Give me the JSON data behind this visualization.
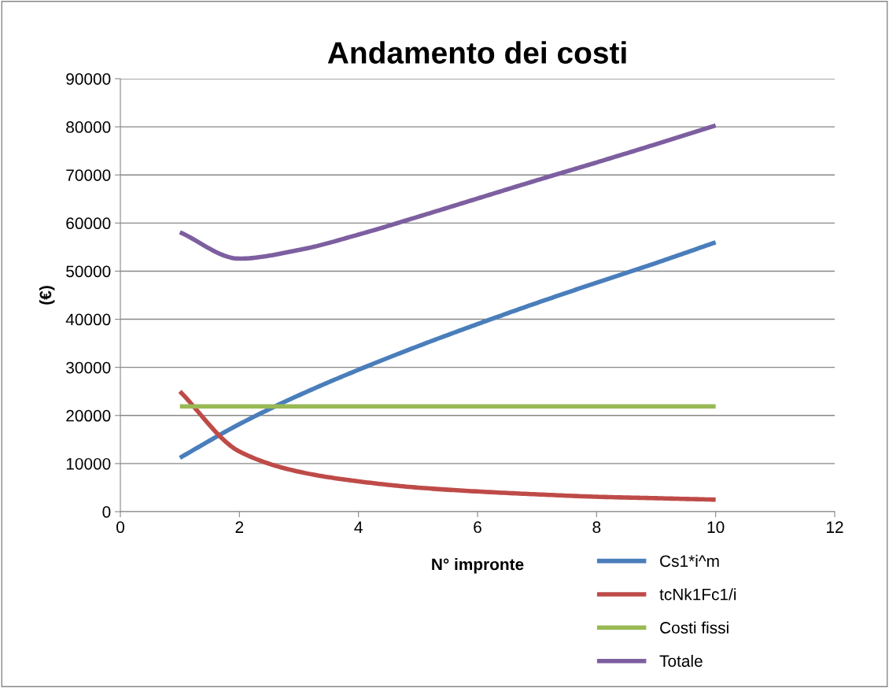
{
  "chart_data": {
    "type": "line",
    "title": "Andamento dei costi",
    "xlabel": "N° impronte",
    "ylabel": "(€)",
    "x": [
      1,
      2,
      3,
      4,
      5,
      6,
      7,
      8,
      9,
      10
    ],
    "series": [
      {
        "name": "Cs1*i^m",
        "color": "#4a7ebb",
        "values": [
          11200,
          18200,
          24200,
          29500,
          34400,
          39000,
          43400,
          47600,
          51700,
          56000
        ]
      },
      {
        "name": "tcNk1Fc1/i",
        "color": "#be4b48",
        "values": [
          25000,
          12500,
          8300,
          6300,
          5000,
          4200,
          3600,
          3100,
          2800,
          2500
        ]
      },
      {
        "name": "Costi fissi",
        "color": "#98b954",
        "values": [
          21900,
          21900,
          21900,
          21900,
          21900,
          21900,
          21900,
          21900,
          21900,
          21900
        ]
      },
      {
        "name": "Totale",
        "color": "#7d5fa0",
        "values": [
          58100,
          52600,
          54400,
          57600,
          61300,
          65100,
          68900,
          72600,
          76400,
          80300
        ]
      }
    ],
    "xlim": [
      0,
      12
    ],
    "xticks": [
      0,
      2,
      4,
      6,
      8,
      10,
      12
    ],
    "ylim": [
      0,
      90000
    ],
    "yticks": [
      0,
      10000,
      20000,
      30000,
      40000,
      50000,
      60000,
      70000,
      80000,
      90000
    ],
    "grid": "y",
    "legend": "bottom right",
    "marker": "none",
    "line_style": "solid"
  }
}
